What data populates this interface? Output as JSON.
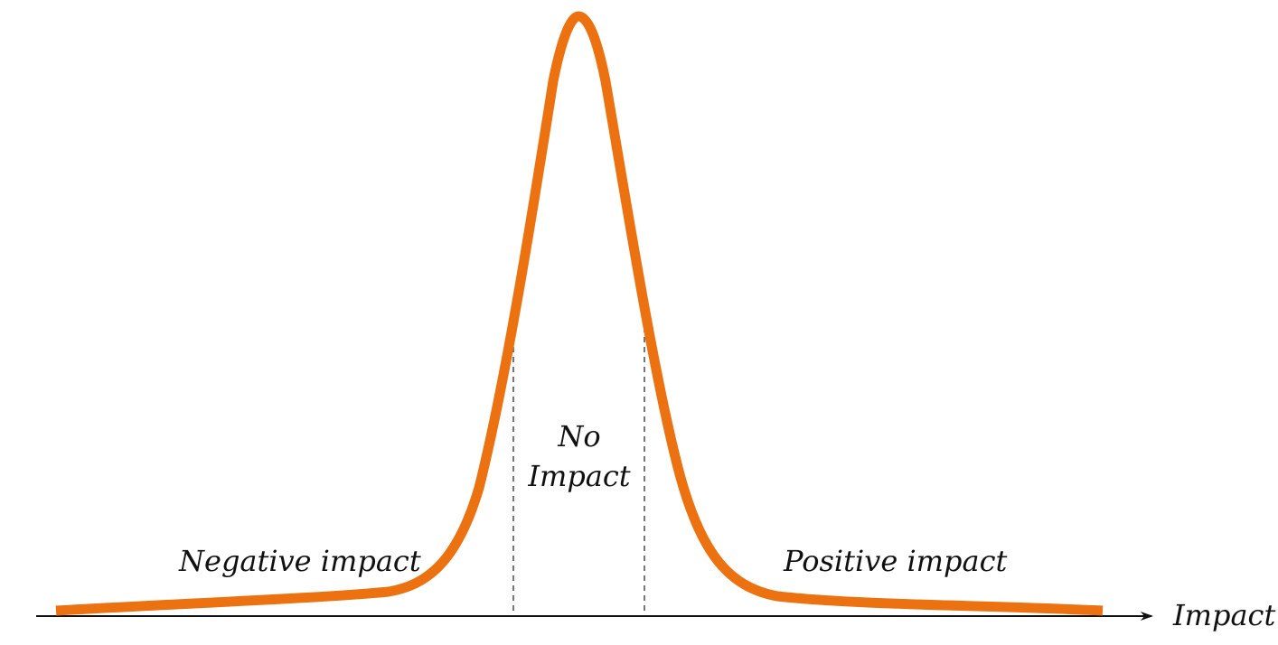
{
  "diagram": {
    "labels": {
      "negative": "Negative impact",
      "no_impact_line1": "No",
      "no_impact_line2": "Impact",
      "positive": "Positive impact",
      "axis": "Impact"
    },
    "colors": {
      "curve": "#ec7111",
      "axis": "#111111",
      "guides": "#555555",
      "text": "#111111"
    }
  }
}
